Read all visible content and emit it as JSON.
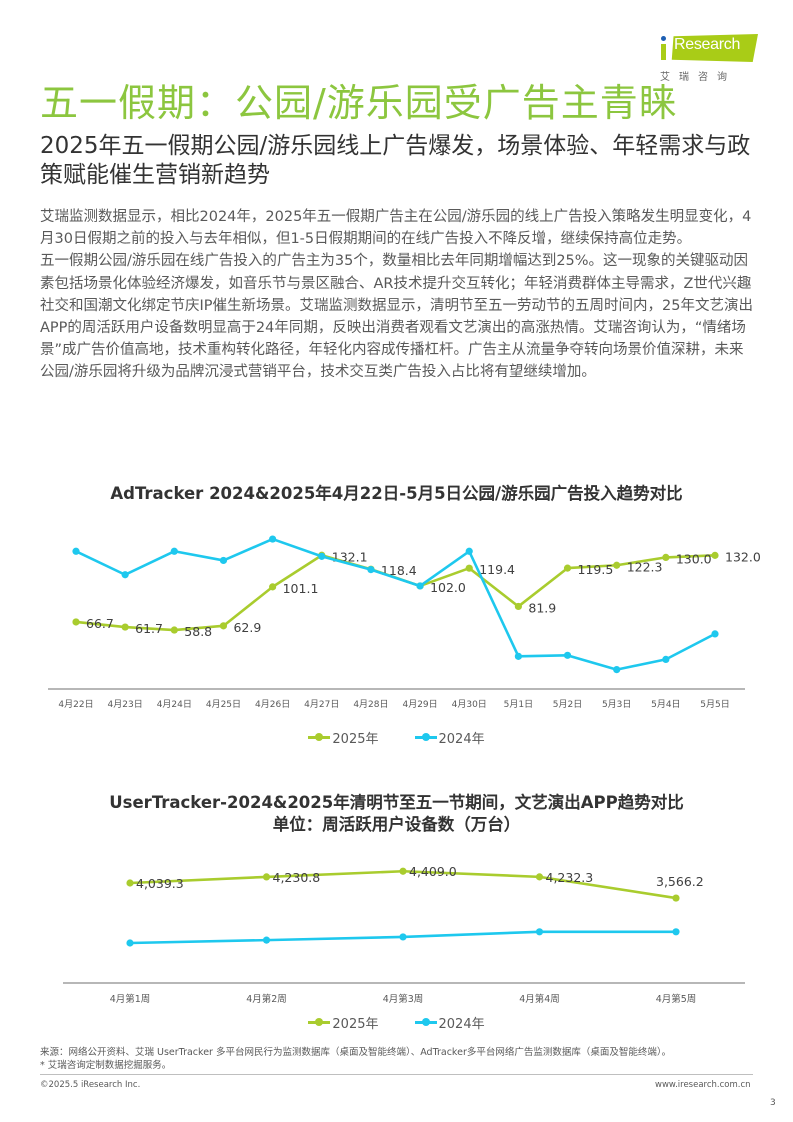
{
  "brand": {
    "logo_text": "Research",
    "logo_sub": "艾瑞咨询",
    "accent_green": "#8cc63f",
    "logo_green": "#a9cc17",
    "series_green": "#a9cc2e",
    "series_blue": "#1ec8ee"
  },
  "header": {
    "title": "五一假期：公园/游乐园受广告主青睐",
    "subtitle": "2025年五一假期公园/游乐园线上广告爆发，场景体验、年轻需求与政策赋能催生营销新趋势"
  },
  "body": {
    "paragraphs": [
      "艾瑞监测数据显示，相比2024年，2025年五一假期广告主在公园/游乐园的线上广告投入策略发生明显变化，4月30日假期之前的投入与去年相似，但1-5日假期期间的在线广告投入不降反增，继续保持高位走势。",
      "五一假期公园/游乐园在线广告投入的广告主为35个，数量相比去年同期增幅达到25%。这一现象的关键驱动因素包括场景化体验经济爆发，如音乐节与景区融合、AR技术提升交互转化；年轻消费群体主导需求，Z世代兴趣社交和国潮文化绑定节庆IP催生新场景。艾瑞监测数据显示，清明节至五一劳动节的五周时间内，25年文艺演出APP的周活跃用户设备数明显高于24年同期，反映出消费者观看文艺演出的高涨热情。艾瑞咨询认为，“情绪场景”成广告价值高地，技术重构转化路径，年轻化内容成传播杠杆。广告主从流量争夺转向场景价值深耕，未来公园/游乐园将升级为品牌沉浸式营销平台，技术交互类广告投入占比将有望继续增加。"
    ]
  },
  "chart_data": [
    {
      "type": "line",
      "title": "AdTracker 2024&2025年4月22日-5月5日公园/游乐园广告投入趋势对比",
      "xlabel": "",
      "ylabel": "",
      "grid": false,
      "legend_position": "bottom",
      "categories": [
        "4月22日",
        "4月23日",
        "4月24日",
        "4月25日",
        "4月26日",
        "4月27日",
        "4月28日",
        "4月29日",
        "4月30日",
        "5月1日",
        "5月2日",
        "5月3日",
        "5月4日",
        "5月5日"
      ],
      "series": [
        {
          "name": "2025年",
          "color": "#a9cc2e",
          "values": [
            66.7,
            61.7,
            58.8,
            62.9,
            101.1,
            132.1,
            118.4,
            102.0,
            119.4,
            81.9,
            119.5,
            122.3,
            130.0,
            132.0
          ],
          "labels_shown": true
        },
        {
          "name": "2024年",
          "color": "#1ec8ee",
          "values": [
            136,
            113,
            136,
            127,
            148,
            131,
            118,
            102,
            136,
            33,
            34,
            20,
            30,
            55
          ],
          "labels_shown": false
        }
      ],
      "ylim": [
        0,
        160
      ]
    },
    {
      "type": "line",
      "title": "UserTracker-2024&2025年清明节至五一节期间，文艺演出APP趋势对比",
      "subtitle": "单位：周活跃用户设备数（万台）",
      "xlabel": "",
      "ylabel": "周活跃用户设备数（万台）",
      "grid": false,
      "legend_position": "bottom",
      "categories": [
        "4月第1周",
        "4月第2周",
        "4月第3周",
        "4月第4周",
        "4月第5周"
      ],
      "series": [
        {
          "name": "2025年",
          "color": "#a9cc2e",
          "values": [
            4039.3,
            4230.8,
            4409.0,
            4232.3,
            3566.2
          ],
          "labels": [
            "4,039.3",
            "4,230.8",
            "4,409.0",
            "4,232.3",
            "3,566.2"
          ],
          "labels_shown": true
        },
        {
          "name": "2024年",
          "color": "#1ec8ee",
          "values": [
            2090,
            2180,
            2280,
            2440,
            2440
          ],
          "labels_shown": false
        }
      ]
    }
  ],
  "chart1": {
    "title": "AdTracker 2024&2025年4月22日-5月5日公园/游乐园广告投入趋势对比",
    "legend": [
      "2025年",
      "2024年"
    ]
  },
  "chart2": {
    "title": "UserTracker-2024&2025年清明节至五一节期间，文艺演出APP趋势对比",
    "subtitle": "单位：周活跃用户设备数（万台）",
    "legend": [
      "2025年",
      "2024年"
    ]
  },
  "footer": {
    "source": "来源：网络公开资料、艾瑞 UserTracker 多平台网民行为监测数据库（桌面及智能终端）、AdTracker多平台网络广告监测数据库（桌面及智能终端）。",
    "note": "* 艾瑞咨询定制数据挖掘服务。",
    "copyright": "©2025.5 iResearch Inc.",
    "url": "www.iresearch.com.cn",
    "page_number": "3"
  }
}
